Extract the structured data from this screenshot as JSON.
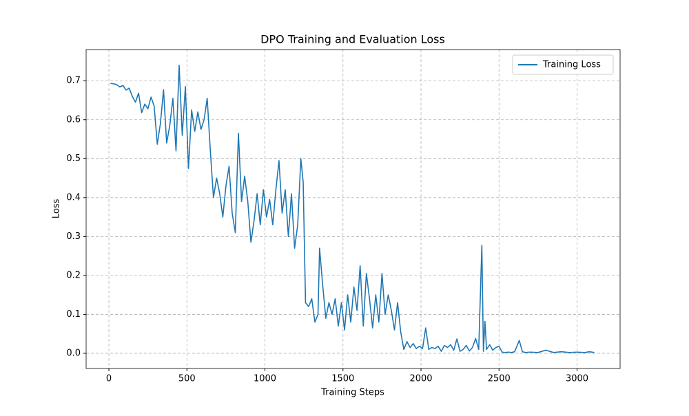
{
  "chart_data": {
    "type": "line",
    "title": "DPO Training and Evaluation Loss",
    "x_label": "Training Steps",
    "y_label": "Loss",
    "x": [
      10,
      30,
      50,
      70,
      90,
      110,
      130,
      150,
      170,
      190,
      210,
      230,
      250,
      270,
      290,
      310,
      330,
      350,
      370,
      390,
      410,
      430,
      450,
      470,
      490,
      510,
      530,
      550,
      570,
      590,
      610,
      630,
      650,
      670,
      690,
      710,
      730,
      750,
      770,
      790,
      810,
      830,
      850,
      870,
      890,
      910,
      930,
      950,
      970,
      990,
      1010,
      1030,
      1050,
      1070,
      1090,
      1110,
      1130,
      1150,
      1170,
      1190,
      1210,
      1230,
      1245,
      1260,
      1280,
      1300,
      1320,
      1340,
      1350,
      1370,
      1390,
      1410,
      1430,
      1450,
      1470,
      1490,
      1510,
      1530,
      1550,
      1570,
      1590,
      1610,
      1630,
      1650,
      1670,
      1690,
      1710,
      1730,
      1750,
      1770,
      1790,
      1810,
      1830,
      1850,
      1870,
      1890,
      1910,
      1930,
      1950,
      1970,
      1990,
      2010,
      2030,
      2050,
      2070,
      2090,
      2110,
      2130,
      2150,
      2170,
      2190,
      2210,
      2230,
      2250,
      2270,
      2290,
      2310,
      2330,
      2350,
      2370,
      2390,
      2400,
      2410,
      2420,
      2440,
      2460,
      2480,
      2500,
      2520,
      2540,
      2560,
      2580,
      2600,
      2630,
      2650,
      2670,
      2700,
      2750,
      2800,
      2850,
      2900,
      2950,
      3000,
      3050,
      3080,
      3110
    ],
    "series": [
      {
        "name": "Training Loss",
        "color": "#1f77b4",
        "values": [
          0.693,
          0.692,
          0.69,
          0.684,
          0.688,
          0.676,
          0.681,
          0.66,
          0.645,
          0.668,
          0.618,
          0.64,
          0.628,
          0.658,
          0.635,
          0.537,
          0.59,
          0.677,
          0.54,
          0.585,
          0.655,
          0.52,
          0.74,
          0.56,
          0.685,
          0.475,
          0.625,
          0.57,
          0.62,
          0.575,
          0.6,
          0.655,
          0.52,
          0.4,
          0.45,
          0.41,
          0.35,
          0.43,
          0.48,
          0.36,
          0.31,
          0.565,
          0.39,
          0.455,
          0.39,
          0.285,
          0.34,
          0.41,
          0.33,
          0.42,
          0.35,
          0.395,
          0.33,
          0.42,
          0.495,
          0.36,
          0.42,
          0.3,
          0.41,
          0.27,
          0.33,
          0.5,
          0.44,
          0.13,
          0.12,
          0.14,
          0.08,
          0.1,
          0.27,
          0.175,
          0.09,
          0.13,
          0.1,
          0.14,
          0.07,
          0.13,
          0.06,
          0.15,
          0.08,
          0.17,
          0.11,
          0.225,
          0.07,
          0.205,
          0.14,
          0.065,
          0.15,
          0.08,
          0.205,
          0.1,
          0.15,
          0.11,
          0.06,
          0.13,
          0.055,
          0.01,
          0.03,
          0.015,
          0.025,
          0.012,
          0.018,
          0.012,
          0.065,
          0.01,
          0.015,
          0.012,
          0.018,
          0.005,
          0.02,
          0.015,
          0.022,
          0.008,
          0.037,
          0.005,
          0.01,
          0.02,
          0.006,
          0.015,
          0.038,
          0.01,
          0.277,
          0.005,
          0.082,
          0.01,
          0.022,
          0.008,
          0.015,
          0.018,
          0.003,
          0.002,
          0.003,
          0.002,
          0.004,
          0.033,
          0.004,
          0.002,
          0.003,
          0.002,
          0.008,
          0.002,
          0.004,
          0.002,
          0.003,
          0.002,
          0.004,
          0.002
        ]
      }
    ],
    "xlim": [
      -146,
      3276
    ],
    "ylim": [
      -0.039,
      0.78
    ],
    "xticks": [
      0,
      500,
      1000,
      1500,
      2000,
      2500,
      3000
    ],
    "yticks": [
      {
        "value": 0,
        "label": "0.0"
      },
      0.1,
      0.2,
      0.3,
      0.4,
      0.5,
      0.6,
      0.7
    ],
    "grid": true,
    "legend": "upper right"
  }
}
